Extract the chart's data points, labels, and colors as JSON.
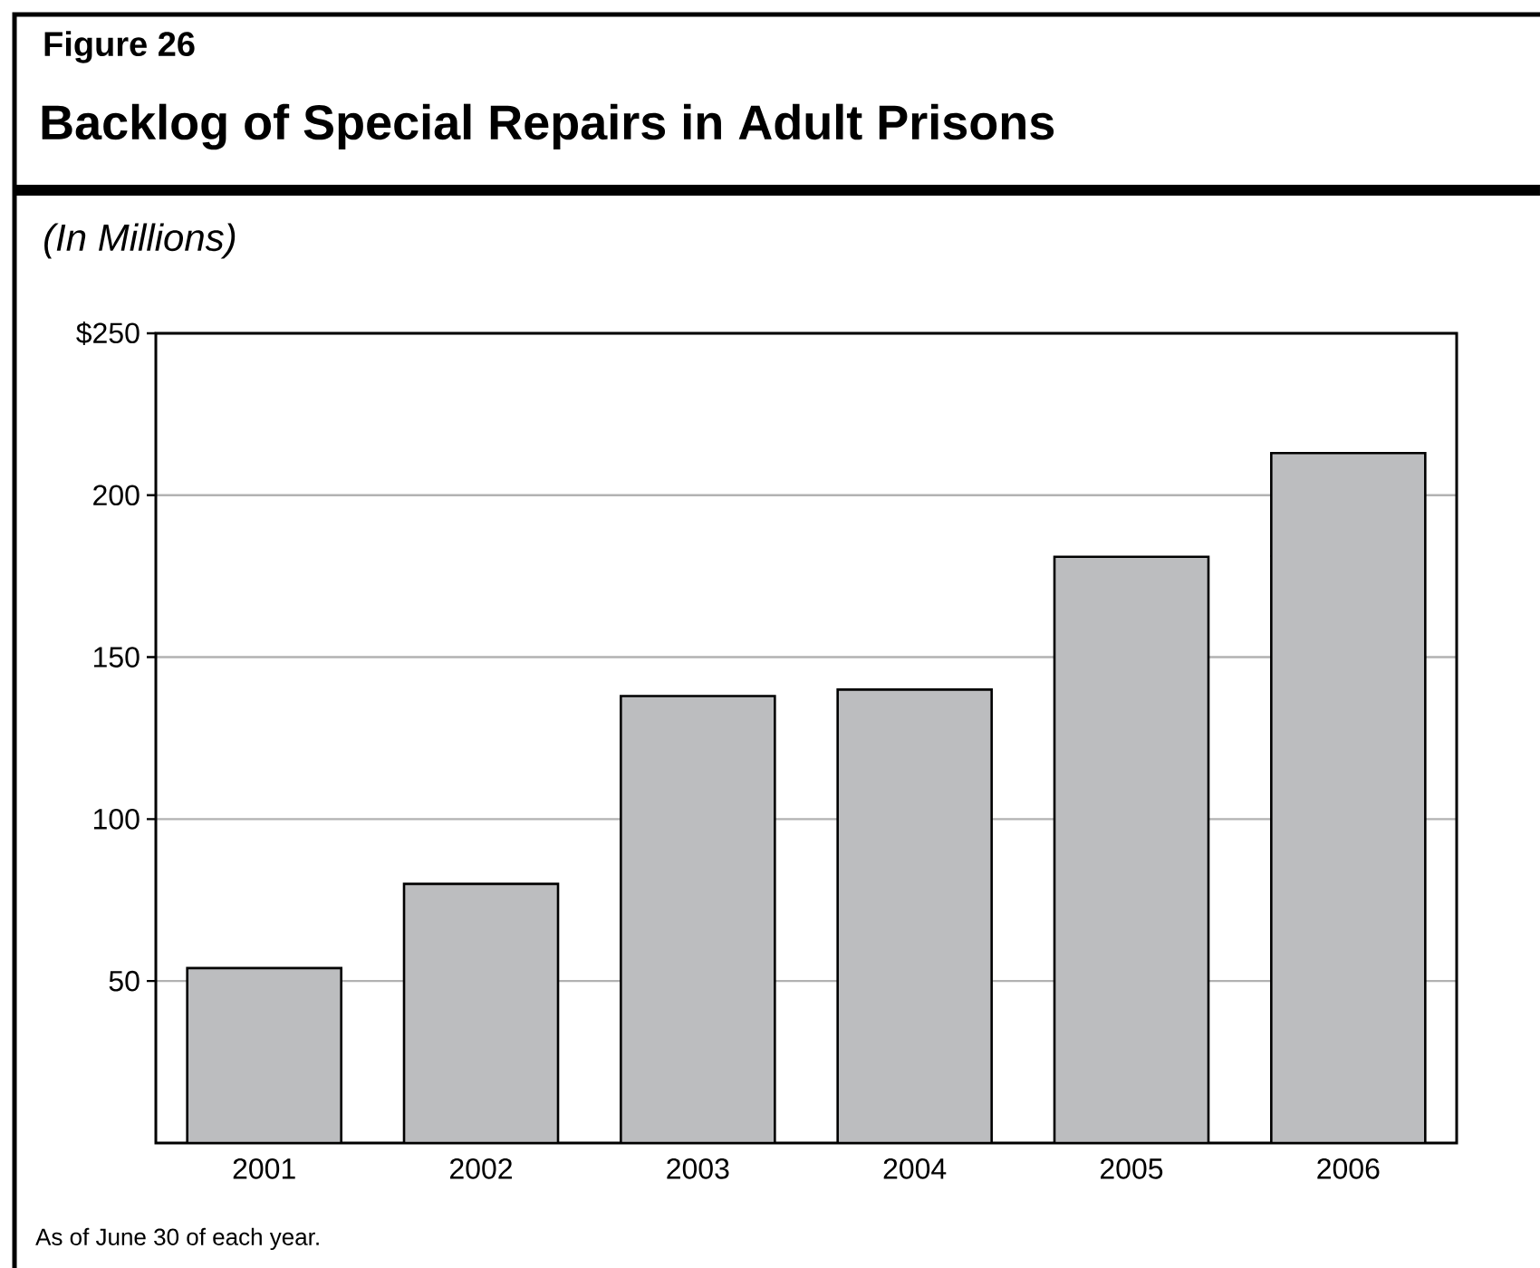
{
  "chart_data": {
    "type": "bar",
    "title": "Backlog of Special Repairs in Adult Prisons",
    "subtitle": "(In Millions)",
    "annotations": [
      "Figure 26",
      "As of June 30 of each year."
    ],
    "categories": [
      "2001",
      "2002",
      "2003",
      "2004",
      "2005",
      "2006"
    ],
    "values": [
      54,
      80,
      138,
      140,
      181,
      213
    ],
    "color": "#bcbdbf",
    "ylim": [
      0,
      250
    ],
    "yticks": [
      50,
      100,
      150,
      200,
      {
        "value": 250,
        "label": "$250"
      }
    ],
    "grid": "y"
  }
}
